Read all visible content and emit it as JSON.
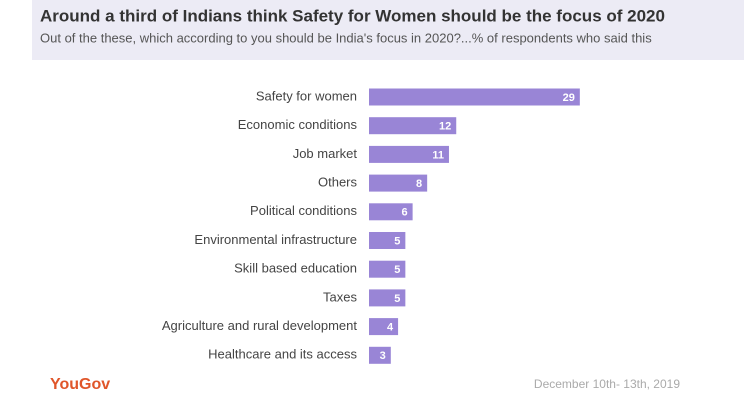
{
  "chart_data": {
    "type": "bar",
    "orientation": "horizontal",
    "title": "Around a third of Indians think Safety for Women should be the focus of 2020",
    "subtitle": "Out of the these, which according to you should be India's focus in 2020?...% of respondents who said this",
    "categories": [
      "Safety for women",
      "Economic conditions",
      "Job market",
      "Others",
      "Political conditions",
      "Environmental infrastructure",
      "Skill based education",
      "Taxes",
      "Agriculture and rural development",
      "Healthcare and its access"
    ],
    "values": [
      29,
      12,
      11,
      8,
      6,
      5,
      5,
      5,
      4,
      3
    ],
    "color": "#9985d6",
    "source": "YouGov",
    "date": "December 10th- 13th, 2019"
  }
}
